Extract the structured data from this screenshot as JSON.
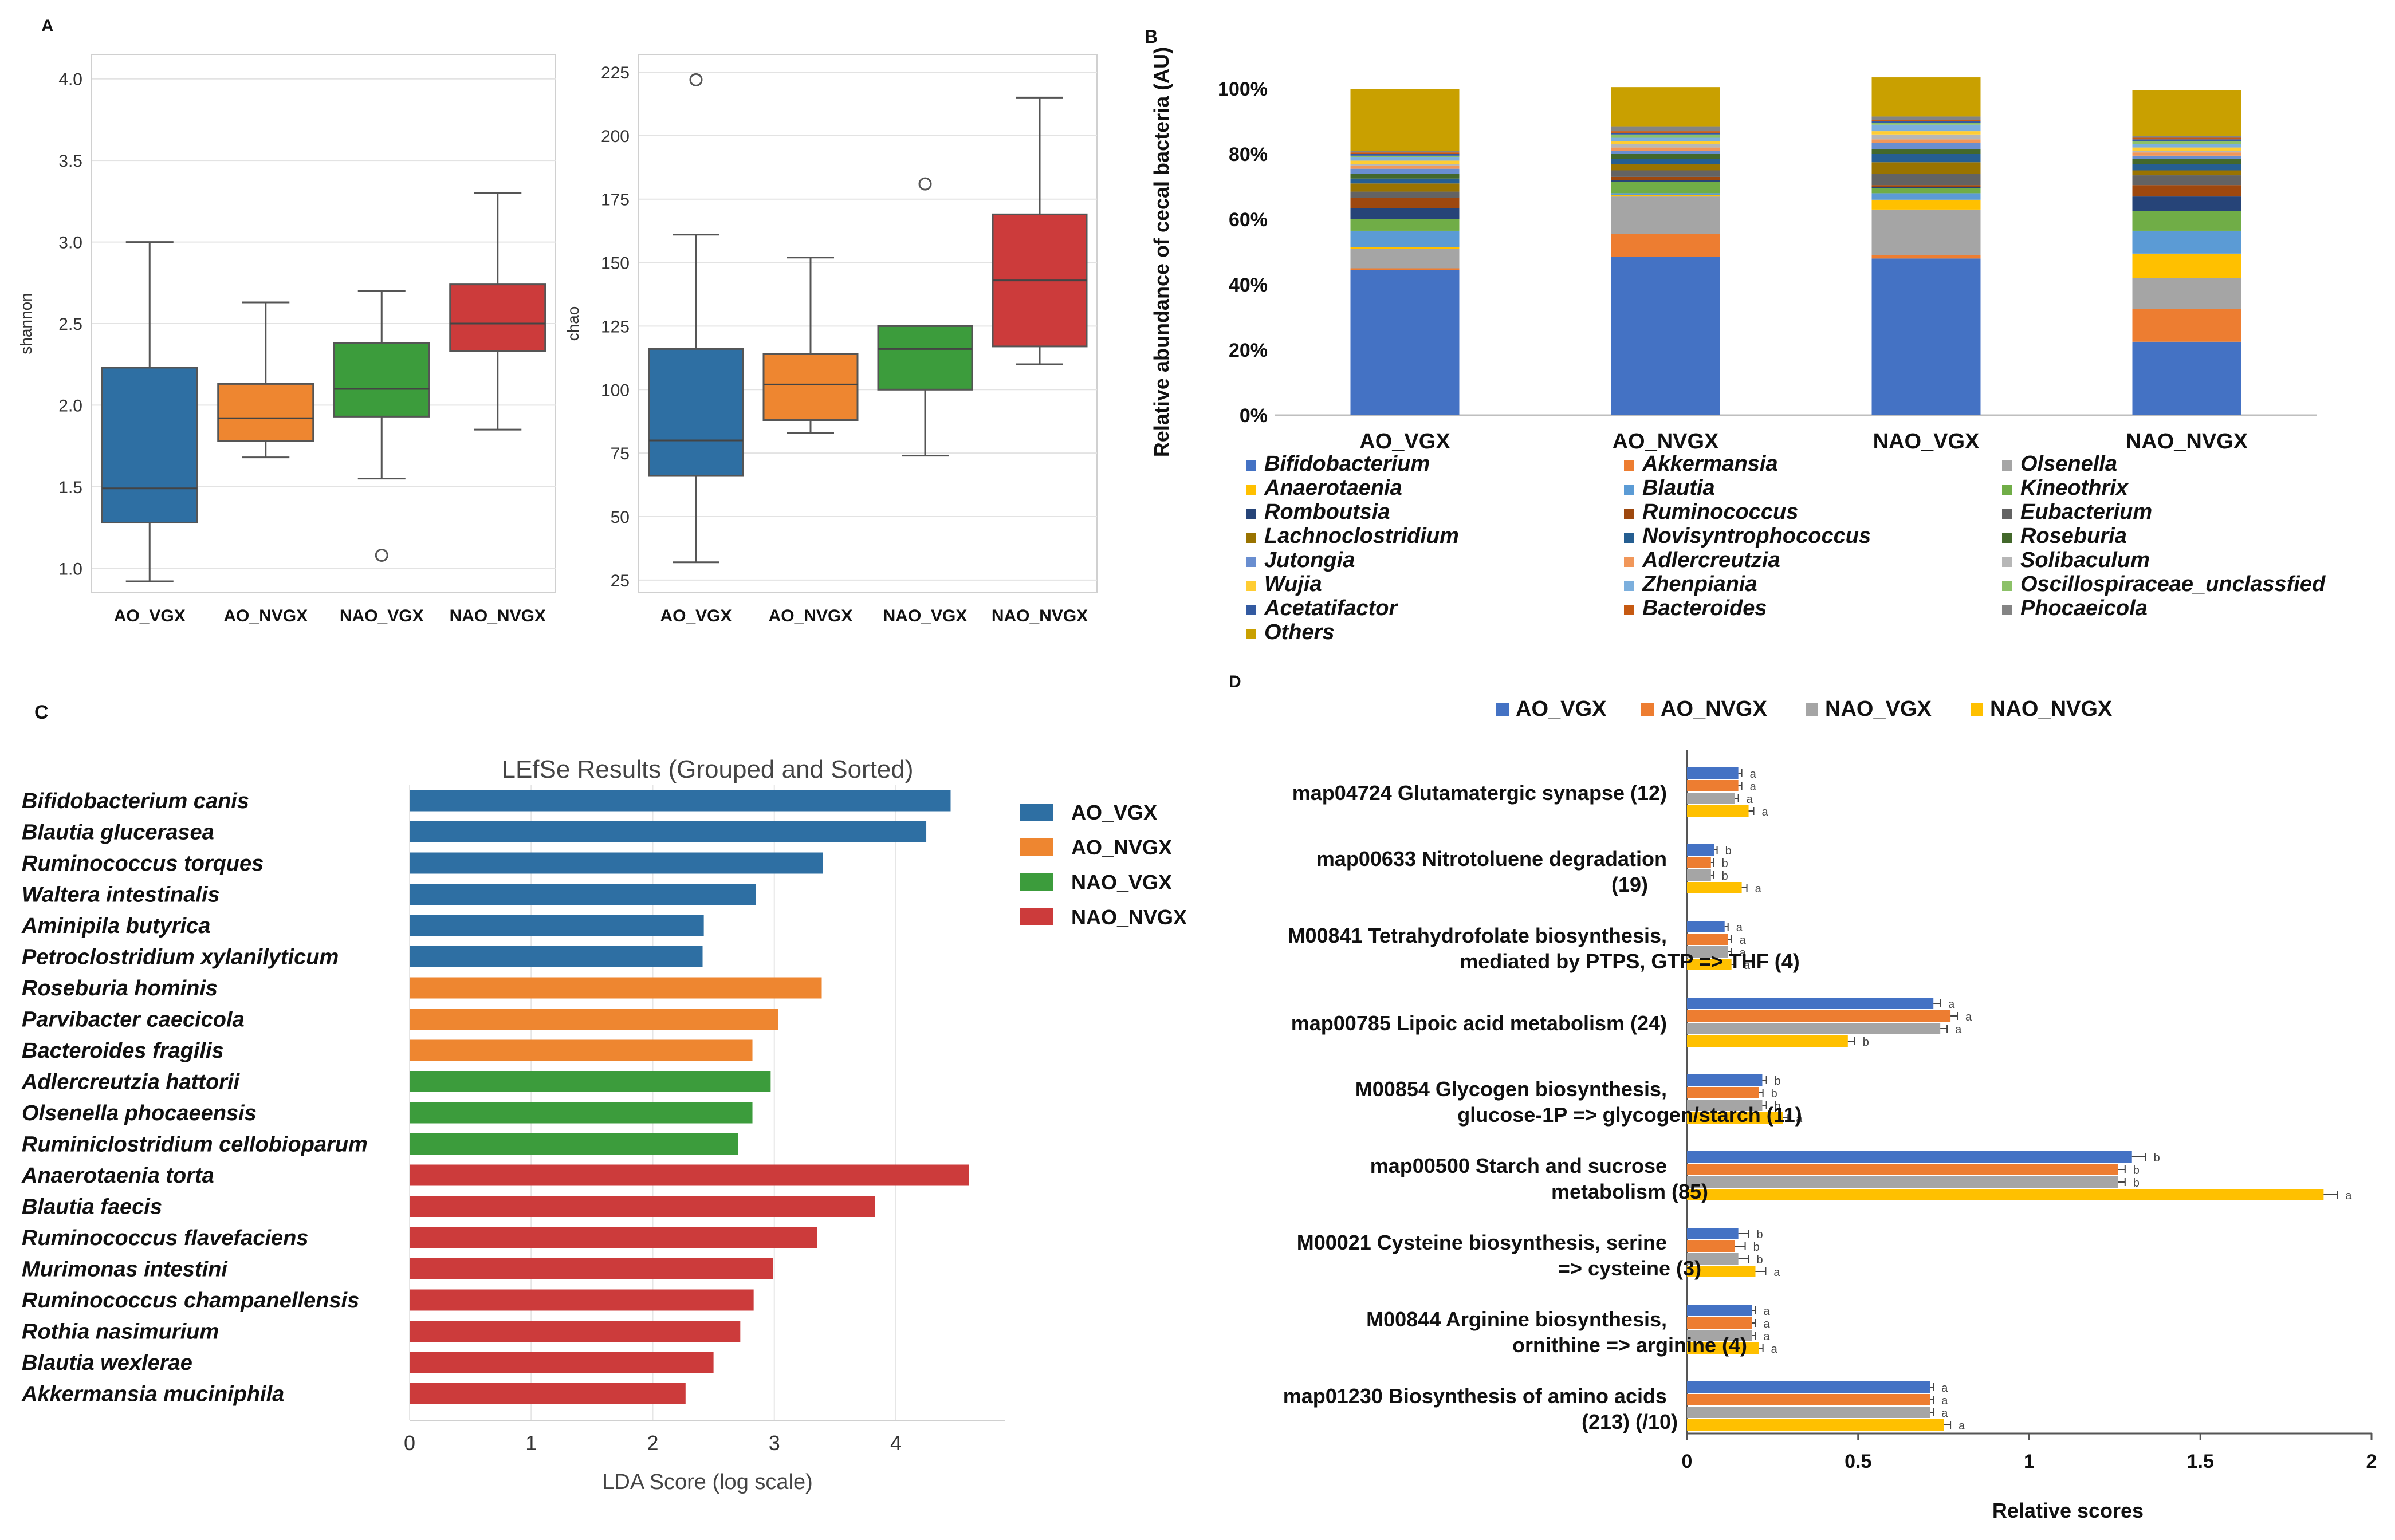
{
  "chart_data": [
    {
      "panel": "A",
      "type": "box",
      "title": "",
      "ylabel": "shannon",
      "ylim": [
        0.85,
        4.15
      ],
      "yticks": [
        1.0,
        1.5,
        2.0,
        2.5,
        3.0,
        3.5,
        4.0
      ],
      "tick_labels": [
        "1.0",
        "1.5",
        "2.0",
        "2.5",
        "3.0",
        "3.5",
        "4.0"
      ],
      "categories": [
        "AO_VGX",
        "AO_NVGX",
        "NAO_VGX",
        "NAO_NVGX"
      ],
      "boxes": [
        {
          "name": "AO_VGX",
          "whislo": 0.92,
          "q1": 1.28,
          "med": 1.49,
          "q3": 2.23,
          "whishi": 3.0,
          "fliers": [],
          "color": "#2E6FA3"
        },
        {
          "name": "AO_NVGX",
          "whislo": 1.68,
          "q1": 1.78,
          "med": 1.92,
          "q3": 2.13,
          "whishi": 2.63,
          "fliers": [],
          "color": "#EE8630"
        },
        {
          "name": "NAO_VGX",
          "whislo": 1.55,
          "q1": 1.93,
          "med": 2.1,
          "q3": 2.38,
          "whishi": 2.7,
          "fliers": [
            1.08
          ],
          "color": "#3C9C3C"
        },
        {
          "name": "NAO_NVGX",
          "whislo": 1.85,
          "q1": 2.33,
          "med": 2.5,
          "q3": 2.74,
          "whishi": 3.3,
          "fliers": [],
          "color": "#CC3B3B"
        }
      ]
    },
    {
      "panel": "A",
      "type": "box",
      "title": "",
      "ylabel": "chao",
      "ylim": [
        20,
        232
      ],
      "yticks": [
        25,
        50,
        75,
        100,
        125,
        150,
        175,
        200,
        225
      ],
      "tick_labels": [
        "25",
        "50",
        "75",
        "100",
        "125",
        "150",
        "175",
        "200",
        "225"
      ],
      "categories": [
        "AO_VGX",
        "AO_NVGX",
        "NAO_VGX",
        "NAO_NVGX"
      ],
      "boxes": [
        {
          "name": "AO_VGX",
          "whislo": 32,
          "q1": 66,
          "med": 80,
          "q3": 116,
          "whishi": 161,
          "fliers": [
            222
          ],
          "color": "#2E6FA3"
        },
        {
          "name": "AO_NVGX",
          "whislo": 83,
          "q1": 88,
          "med": 102,
          "q3": 114,
          "whishi": 152,
          "fliers": [],
          "color": "#EE8630"
        },
        {
          "name": "NAO_VGX",
          "whislo": 74,
          "q1": 100,
          "med": 116,
          "q3": 125,
          "whishi": 125,
          "fliers": [
            181
          ],
          "color": "#3C9C3C"
        },
        {
          "name": "NAO_NVGX",
          "whislo": 110,
          "q1": 117,
          "med": 143,
          "q3": 169,
          "whishi": 215,
          "fliers": [],
          "color": "#CC3B3B"
        }
      ]
    },
    {
      "panel": "B",
      "type": "stacked_bar",
      "title": "",
      "ylabel": "Relative abundance of cecal bacteria (AU)",
      "ylim": [
        0,
        100
      ],
      "tick_labels": [
        "0%",
        "20%",
        "40%",
        "60%",
        "80%",
        "100%"
      ],
      "categories": [
        "AO_VGX",
        "AO_NVGX",
        "NAO_VGX",
        "NAO_NVGX"
      ],
      "series": [
        {
          "name": "Bifidobacterium",
          "color": "#4472C4",
          "values": [
            44.5,
            48.5,
            48.0,
            22.5
          ]
        },
        {
          "name": "Akkermansia",
          "color": "#ED7D31",
          "values": [
            0.5,
            7.0,
            1.0,
            10.0
          ]
        },
        {
          "name": "Olsenella",
          "color": "#A5A5A5",
          "values": [
            6.0,
            11.5,
            14.0,
            9.5
          ]
        },
        {
          "name": "Anaerotaenia",
          "color": "#FFC000",
          "values": [
            0.5,
            0.5,
            3.0,
            7.5
          ]
        },
        {
          "name": "Blautia",
          "color": "#5B9BD5",
          "values": [
            5.0,
            0.5,
            2.0,
            7.0
          ]
        },
        {
          "name": "Kineothrix",
          "color": "#70AD47",
          "values": [
            3.5,
            3.5,
            1.5,
            6.0
          ]
        },
        {
          "name": "Romboutsia",
          "color": "#264478",
          "values": [
            3.5,
            0.5,
            0.5,
            4.5
          ]
        },
        {
          "name": "Ruminococcus",
          "color": "#9E480E",
          "values": [
            3.0,
            1.0,
            0.5,
            3.5
          ]
        },
        {
          "name": "Eubacterium",
          "color": "#636363",
          "values": [
            2.0,
            2.0,
            3.5,
            3.0
          ]
        },
        {
          "name": "Lachnoclostridium",
          "color": "#997300",
          "values": [
            2.5,
            2.0,
            3.5,
            1.5
          ]
        },
        {
          "name": "Novisyntrophococcus",
          "color": "#255E91",
          "values": [
            1.5,
            1.5,
            2.5,
            2.0
          ]
        },
        {
          "name": "Roseburia",
          "color": "#43682B",
          "values": [
            1.5,
            1.5,
            1.5,
            1.5
          ]
        },
        {
          "name": "Jutongia",
          "color": "#698ED0",
          "values": [
            1.5,
            1.0,
            2.0,
            1.0
          ]
        },
        {
          "name": "Adlercreutzia",
          "color": "#F1975A",
          "values": [
            1.0,
            1.0,
            1.0,
            1.0
          ]
        },
        {
          "name": "Solibaculum",
          "color": "#B7B7B7",
          "values": [
            0.5,
            1.0,
            1.5,
            0.5
          ]
        },
        {
          "name": "Wujia",
          "color": "#FFCD33",
          "values": [
            1.0,
            1.0,
            1.0,
            1.0
          ]
        },
        {
          "name": "Zhenpiania",
          "color": "#7CAFDD",
          "values": [
            1.0,
            1.0,
            2.0,
            1.0
          ]
        },
        {
          "name": "Oscillospiraceae_unclassfied",
          "color": "#8CC168",
          "values": [
            0.5,
            1.0,
            0.5,
            1.0
          ]
        },
        {
          "name": "Acetatifactor",
          "color": "#335AA1",
          "values": [
            0.5,
            0.5,
            0.5,
            0.5
          ]
        },
        {
          "name": "Bacteroides",
          "color": "#C65911",
          "values": [
            0.5,
            0.5,
            0.5,
            0.5
          ]
        },
        {
          "name": "Phocaeicola",
          "color": "#848484",
          "values": [
            0.5,
            1.5,
            1.0,
            0.5
          ]
        },
        {
          "name": "Others",
          "color": "#C9A000",
          "values": [
            19.0,
            12.0,
            12.0,
            14.0
          ]
        }
      ]
    },
    {
      "panel": "C",
      "type": "bar",
      "orientation": "horizontal",
      "title": "LEfSe Results (Grouped and Sorted)",
      "xlabel": "LDA Score (log scale)",
      "xlim": [
        0,
        4.9
      ],
      "tick_labels": [
        "0",
        "1",
        "2",
        "3",
        "4"
      ],
      "legend": [
        {
          "name": "AO_VGX",
          "color": "#2E6FA3"
        },
        {
          "name": "AO_NVGX",
          "color": "#EE8630"
        },
        {
          "name": "NAO_VGX",
          "color": "#3C9C3C"
        },
        {
          "name": "NAO_NVGX",
          "color": "#CC3B3B"
        }
      ],
      "bars": [
        {
          "label": "Bifidobacterium canis",
          "value": 4.45,
          "group": 0
        },
        {
          "label": "Blautia glucerasea",
          "value": 4.25,
          "group": 0
        },
        {
          "label": "Ruminococcus torques",
          "value": 3.4,
          "group": 0
        },
        {
          "label": "Waltera intestinalis",
          "value": 2.85,
          "group": 0
        },
        {
          "label": "Aminipila butyrica",
          "value": 2.42,
          "group": 0
        },
        {
          "label": "Petroclostridium xylanilyticum",
          "value": 2.41,
          "group": 0
        },
        {
          "label": "Roseburia hominis",
          "value": 3.39,
          "group": 1
        },
        {
          "label": "Parvibacter caecicola",
          "value": 3.03,
          "group": 1
        },
        {
          "label": "Bacteroides fragilis",
          "value": 2.82,
          "group": 1
        },
        {
          "label": "Adlercreutzia hattorii",
          "value": 2.97,
          "group": 2
        },
        {
          "label": "Olsenella phocaeensis",
          "value": 2.82,
          "group": 2
        },
        {
          "label": "Ruminiclostridium cellobioparum",
          "value": 2.7,
          "group": 2
        },
        {
          "label": "Anaerotaenia torta",
          "value": 4.6,
          "group": 3
        },
        {
          "label": "Blautia faecis",
          "value": 3.83,
          "group": 3
        },
        {
          "label": "Ruminococcus flavefaciens",
          "value": 3.35,
          "group": 3
        },
        {
          "label": "Murimonas intestini",
          "value": 2.99,
          "group": 3
        },
        {
          "label": "Ruminococcus champanellensis",
          "value": 2.83,
          "group": 3
        },
        {
          "label": "Rothia nasimurium",
          "value": 2.72,
          "group": 3
        },
        {
          "label": "Blautia wexlerae",
          "value": 2.5,
          "group": 3
        },
        {
          "label": "Akkermansia muciniphila",
          "value": 2.27,
          "group": 3
        }
      ]
    },
    {
      "panel": "D",
      "type": "bar",
      "orientation": "horizontal-grouped",
      "xlabel": "Relative scores",
      "xlim": [
        0,
        2
      ],
      "tick_labels": [
        "0",
        "0.5",
        "1",
        "1.5",
        "2"
      ],
      "series": [
        {
          "name": "AO_VGX",
          "color": "#4472C4"
        },
        {
          "name": "AO_NVGX",
          "color": "#ED7D31"
        },
        {
          "name": "NAO_VGX",
          "color": "#A5A5A5"
        },
        {
          "name": "NAO_NVGX",
          "color": "#FFC000"
        }
      ],
      "pathways": [
        {
          "line1": "map04724 Glutamatergic synapse (12)",
          "line2": "",
          "values": [
            0.15,
            0.15,
            0.14,
            0.18
          ],
          "errors": [
            0.01,
            0.01,
            0.01,
            0.015
          ],
          "sig": [
            "a",
            "a",
            "a",
            "a"
          ]
        },
        {
          "line1": "map00633 Nitrotoluene degradation",
          "line2": "(19)",
          "values": [
            0.08,
            0.07,
            0.07,
            0.16
          ],
          "errors": [
            0.008,
            0.008,
            0.008,
            0.015
          ],
          "sig": [
            "b",
            "b",
            "b",
            "a"
          ]
        },
        {
          "line1": "M00841 Tetrahydrofolate biosynthesis,",
          "line2": "mediated by PTPS, GTP => THF (4)",
          "values": [
            0.11,
            0.12,
            0.12,
            0.13
          ],
          "errors": [
            0.01,
            0.01,
            0.01,
            0.012
          ],
          "sig": [
            "a",
            "a",
            "a",
            "a"
          ]
        },
        {
          "line1": "map00785 Lipoic acid metabolism (24)",
          "line2": "",
          "values": [
            0.72,
            0.77,
            0.74,
            0.47
          ],
          "errors": [
            0.02,
            0.02,
            0.02,
            0.02
          ],
          "sig": [
            "a",
            "a",
            "a",
            "b"
          ]
        },
        {
          "line1": "M00854 Glycogen biosynthesis,",
          "line2": "glucose-1P => glycogen/starch (11)",
          "values": [
            0.22,
            0.21,
            0.22,
            0.28
          ],
          "errors": [
            0.012,
            0.012,
            0.012,
            0.015
          ],
          "sig": [
            "b",
            "b",
            "b",
            "a"
          ]
        },
        {
          "line1": "map00500 Starch and sucrose",
          "line2": "metabolism (85)",
          "values": [
            1.3,
            1.26,
            1.26,
            1.86
          ],
          "errors": [
            0.04,
            0.02,
            0.02,
            0.04
          ],
          "sig": [
            "b",
            "b",
            "b",
            "a"
          ]
        },
        {
          "line1": "M00021 Cysteine biosynthesis, serine",
          "line2": "=> cysteine (3)",
          "values": [
            0.15,
            0.14,
            0.15,
            0.2
          ],
          "errors": [
            0.03,
            0.03,
            0.03,
            0.03
          ],
          "sig": [
            "b",
            "b",
            "b",
            "a"
          ]
        },
        {
          "line1": "M00844 Arginine biosynthesis,",
          "line2": "ornithine => arginine (4)",
          "values": [
            0.19,
            0.19,
            0.19,
            0.21
          ],
          "errors": [
            0.01,
            0.01,
            0.01,
            0.012
          ],
          "sig": [
            "a",
            "a",
            "a",
            "a"
          ]
        },
        {
          "line1": "map01230 Biosynthesis of amino acids",
          "line2": "(213) (/10)",
          "values": [
            0.71,
            0.71,
            0.71,
            0.75
          ],
          "errors": [
            0.01,
            0.01,
            0.01,
            0.02
          ],
          "sig": [
            "a",
            "a",
            "a",
            "a"
          ]
        }
      ]
    }
  ],
  "panel_labels": {
    "a": "A",
    "b": "B",
    "c": "C",
    "d": "D"
  }
}
